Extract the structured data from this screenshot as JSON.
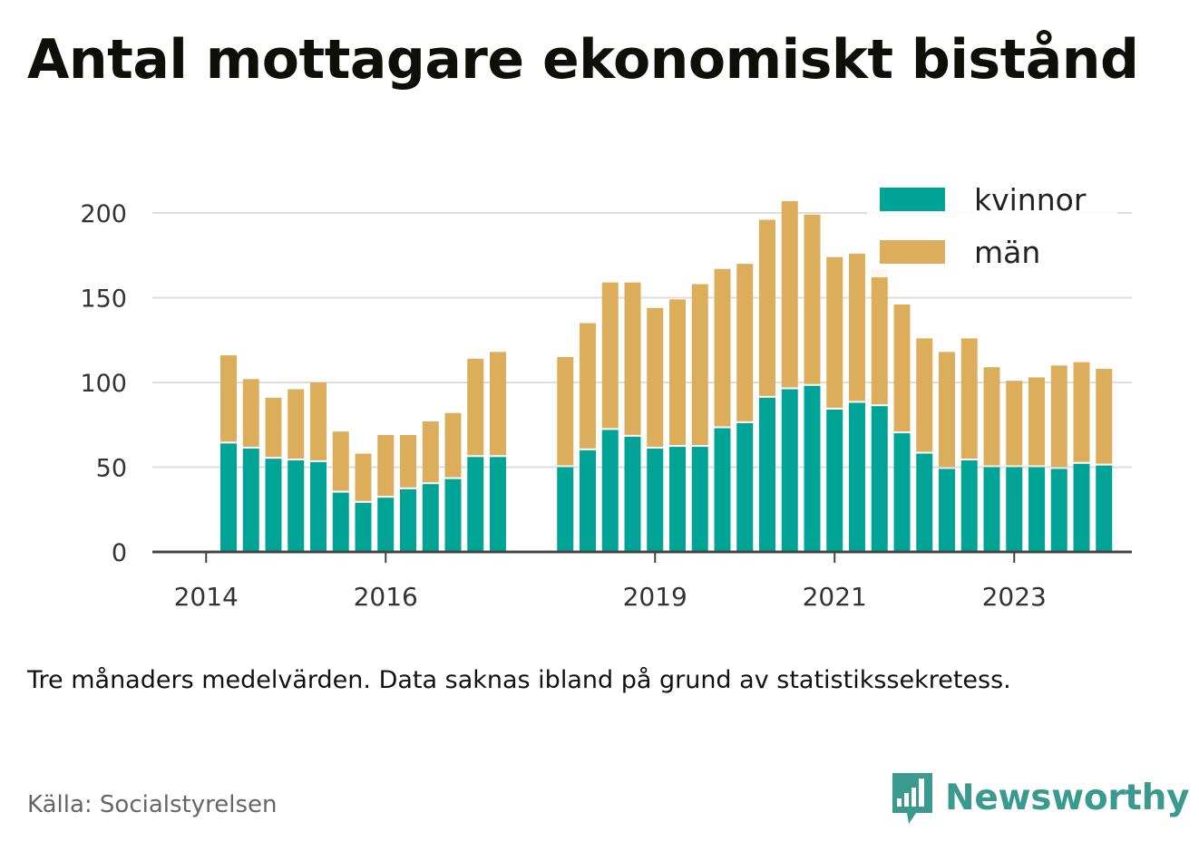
{
  "title": "Antal mottagare ekonomiskt bistånd",
  "note": "Tre månaders medelvärden. Data saknas ibland på grund av statistikssekretess.",
  "source": "Källa: Socialstyrelsen",
  "brand": {
    "name": "Newsworthy",
    "icon": "newsworthy-logo-icon",
    "color": "#3b9a8e"
  },
  "colors": {
    "kvinnor": "#00a497",
    "man": "#dcae5b",
    "grid": "#dddddd",
    "axis": "#444444"
  },
  "chart_data": {
    "type": "bar",
    "stacked": true,
    "title": "Antal mottagare ekonomiskt bistånd",
    "xlabel": "",
    "ylabel": "",
    "ylim": [
      0,
      200
    ],
    "yticks": [
      0,
      50,
      100,
      150,
      200
    ],
    "xtick_labels": [
      "2014",
      "2016",
      "2019",
      "2021",
      "2023"
    ],
    "grid": true,
    "legend_position": "top-right",
    "x": [
      "2014-04",
      "2014-07",
      "2014-10",
      "2015-01",
      "2015-04",
      "2015-07",
      "2015-10",
      "2016-01",
      "2016-04",
      "2016-07",
      "2016-10",
      "2017-01",
      "2017-04",
      "2017-07",
      "2017-10",
      "2018-01",
      "2018-04",
      "2018-07",
      "2018-10",
      "2019-01",
      "2019-04",
      "2019-07",
      "2019-10",
      "2020-01",
      "2020-04",
      "2020-07",
      "2020-10",
      "2021-01",
      "2021-04",
      "2021-07",
      "2021-10",
      "2022-01",
      "2022-04",
      "2022-07",
      "2022-10",
      "2023-01",
      "2023-04",
      "2023-07",
      "2023-10",
      "2024-01"
    ],
    "series": [
      {
        "name": "kvinnor",
        "values": [
          64,
          61,
          55,
          54,
          53,
          35,
          29,
          32,
          37,
          40,
          43,
          56,
          56,
          null,
          null,
          50,
          60,
          72,
          68,
          61,
          62,
          62,
          73,
          76,
          91,
          96,
          98,
          84,
          88,
          86,
          70,
          58,
          49,
          54,
          50,
          50,
          50,
          49,
          52,
          51
        ]
      },
      {
        "name": "män",
        "values": [
          52,
          41,
          36,
          42,
          47,
          36,
          29,
          37,
          32,
          37,
          39,
          58,
          62,
          null,
          null,
          65,
          75,
          87,
          91,
          83,
          87,
          96,
          94,
          94,
          105,
          111,
          101,
          90,
          88,
          81,
          76,
          68,
          69,
          72,
          59,
          51,
          53,
          61,
          60,
          57
        ]
      }
    ]
  }
}
